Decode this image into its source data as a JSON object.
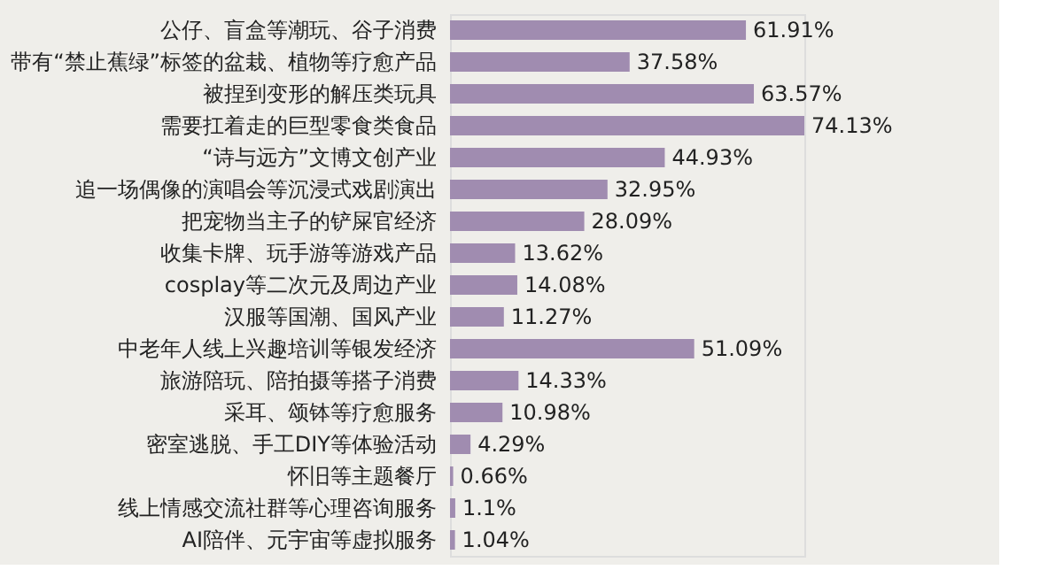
{
  "chart_data": {
    "type": "bar",
    "orientation": "horizontal",
    "tick_labels": "y",
    "categories": [
      "公仔、盲盒等潮玩、谷子消费",
      "带有“禁止蕉绿”标签的盆栽、植物等疗愈产品",
      "被捏到变形的解压类玩具",
      "需要扛着走的巨型零食类食品",
      "“诗与远方”文博文创产业",
      "追一场偶像的演唱会等沉浸式戏剧演出",
      "把宠物当主子的铲屎官经济",
      "收集卡牌、玩手游等游戏产品",
      "cosplay等二次元及周边产业",
      "汉服等国潮、国风产业",
      "中老年人线上兴趣培训等银发经济",
      "旅游陪玩、陪拍摄等搭子消费",
      "采耳、颂钵等疗愈服务",
      "密室逃脱、手工DIY等体验活动",
      "怀旧等主题餐厅",
      "线上情感交流社群等心理咨询服务",
      "AI陪伴、元宇宙等虚拟服务"
    ],
    "values": [
      61.91,
      37.58,
      63.57,
      74.13,
      44.93,
      32.95,
      28.09,
      13.62,
      14.08,
      11.27,
      51.09,
      14.33,
      10.98,
      4.29,
      0.66,
      1.1,
      1.04
    ],
    "value_labels": [
      "61.91%",
      "37.58%",
      "63.57%",
      "74.13%",
      "44.93%",
      "32.95%",
      "28.09%",
      "13.62%",
      "14.08%",
      "11.27%",
      "51.09%",
      "14.33%",
      "10.98%",
      "4.29%",
      "0.66%",
      "1.1%",
      "1.04%"
    ],
    "color": "#a08cb0"
  }
}
